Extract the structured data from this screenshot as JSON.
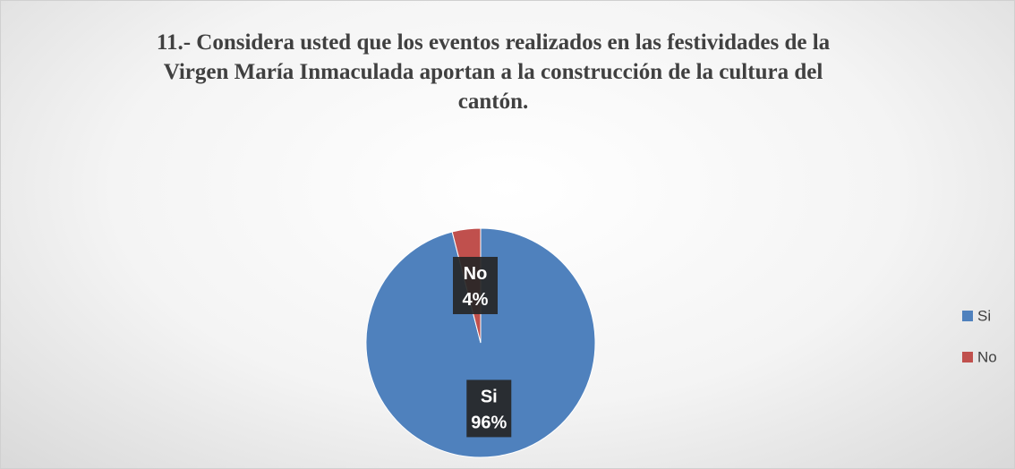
{
  "chart_data": {
    "type": "pie",
    "title": "11.- Considera usted que los eventos realizados en las festividades de la Virgen María Inmaculada aportan a la construcción de la cultura del cantón.",
    "categories": [
      "Si",
      "No"
    ],
    "values": [
      96,
      4
    ],
    "value_labels": [
      "96%",
      "4%"
    ],
    "colors": [
      "#4f81bd",
      "#c0504d"
    ],
    "legend": "right"
  }
}
